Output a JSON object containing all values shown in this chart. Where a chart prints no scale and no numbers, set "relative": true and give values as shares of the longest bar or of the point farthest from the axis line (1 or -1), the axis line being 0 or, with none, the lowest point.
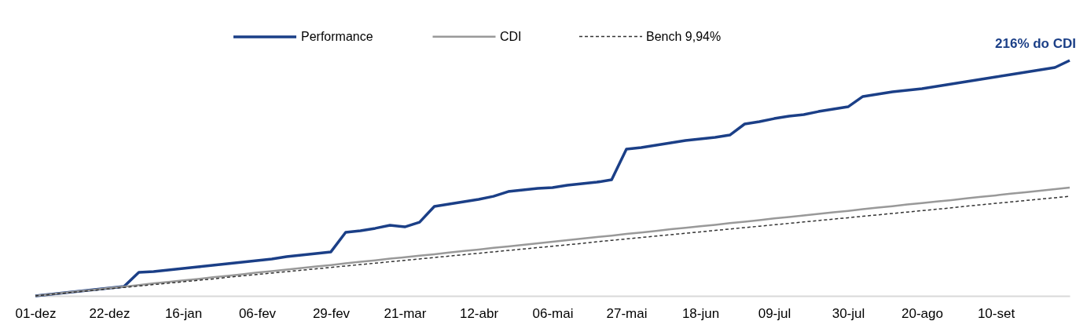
{
  "chart_data": {
    "type": "line",
    "relative": true,
    "grid": false,
    "legend": "top",
    "marker": "none",
    "categories": [
      "01-dez",
      null,
      null,
      null,
      null,
      "22-dez",
      null,
      null,
      null,
      null,
      "16-jan",
      null,
      null,
      null,
      null,
      "06-fev",
      null,
      null,
      null,
      null,
      "29-fev",
      null,
      null,
      null,
      null,
      "21-mar",
      null,
      null,
      null,
      null,
      "12-abr",
      null,
      null,
      null,
      null,
      "06-mai",
      null,
      null,
      null,
      null,
      "27-mai",
      null,
      null,
      null,
      null,
      "18-jun",
      null,
      null,
      null,
      null,
      "09-jul",
      null,
      null,
      null,
      null,
      "30-jul",
      null,
      null,
      null,
      null,
      "20-ago",
      null,
      null,
      null,
      null,
      "10-set",
      null,
      null,
      null,
      null,
      null
    ],
    "series": [
      {
        "name": "Performance",
        "color": "#1b3f87",
        "line_style": "solid",
        "values": [
          0,
          0.007,
          0.013,
          0.02,
          0.027,
          0.033,
          0.04,
          0.1,
          0.103,
          0.11,
          0.117,
          0.123,
          0.13,
          0.137,
          0.143,
          0.15,
          0.157,
          0.167,
          0.173,
          0.18,
          0.187,
          0.27,
          0.277,
          0.287,
          0.3,
          0.293,
          0.313,
          0.38,
          0.39,
          0.4,
          0.41,
          0.423,
          0.443,
          0.45,
          0.457,
          0.46,
          0.47,
          0.477,
          0.483,
          0.493,
          0.623,
          0.63,
          0.64,
          0.65,
          0.66,
          0.667,
          0.673,
          0.683,
          0.73,
          0.74,
          0.753,
          0.763,
          0.77,
          0.783,
          0.793,
          0.803,
          0.847,
          0.857,
          0.867,
          0.873,
          0.88,
          0.89,
          0.9,
          0.91,
          0.92,
          0.93,
          0.94,
          0.95,
          0.96,
          0.97,
          1
        ]
      },
      {
        "name": "CDI",
        "color": "#999999",
        "line_style": "solid",
        "values": [
          0,
          0.007,
          0.013,
          0.02,
          0.026,
          0.033,
          0.039,
          0.046,
          0.053,
          0.059,
          0.066,
          0.072,
          0.079,
          0.085,
          0.092,
          0.099,
          0.105,
          0.112,
          0.118,
          0.125,
          0.131,
          0.138,
          0.145,
          0.151,
          0.158,
          0.164,
          0.171,
          0.177,
          0.184,
          0.191,
          0.197,
          0.204,
          0.21,
          0.217,
          0.223,
          0.23,
          0.237,
          0.243,
          0.25,
          0.256,
          0.263,
          0.269,
          0.276,
          0.283,
          0.289,
          0.296,
          0.302,
          0.309,
          0.315,
          0.322,
          0.329,
          0.335,
          0.342,
          0.348,
          0.355,
          0.361,
          0.368,
          0.375,
          0.381,
          0.388,
          0.394,
          0.401,
          0.407,
          0.414,
          0.421,
          0.427,
          0.434,
          0.44,
          0.447,
          0.453,
          0.46
        ]
      },
      {
        "name": "Bench 9,94%",
        "color": "#333333",
        "line_style": "dashed",
        "values": [
          0,
          0.006,
          0.012,
          0.018,
          0.024,
          0.03,
          0.036,
          0.042,
          0.048,
          0.054,
          0.06,
          0.066,
          0.072,
          0.079,
          0.085,
          0.091,
          0.097,
          0.103,
          0.109,
          0.115,
          0.121,
          0.127,
          0.133,
          0.139,
          0.145,
          0.151,
          0.157,
          0.163,
          0.169,
          0.175,
          0.181,
          0.187,
          0.193,
          0.199,
          0.205,
          0.211,
          0.217,
          0.223,
          0.23,
          0.236,
          0.242,
          0.248,
          0.254,
          0.26,
          0.266,
          0.272,
          0.278,
          0.284,
          0.29,
          0.296,
          0.302,
          0.308,
          0.314,
          0.32,
          0.326,
          0.332,
          0.338,
          0.344,
          0.35,
          0.356,
          0.362,
          0.368,
          0.374,
          0.381,
          0.387,
          0.393,
          0.399,
          0.405,
          0.411,
          0.417,
          0.423
        ]
      }
    ],
    "annotations": [
      "216% do CDI"
    ]
  }
}
